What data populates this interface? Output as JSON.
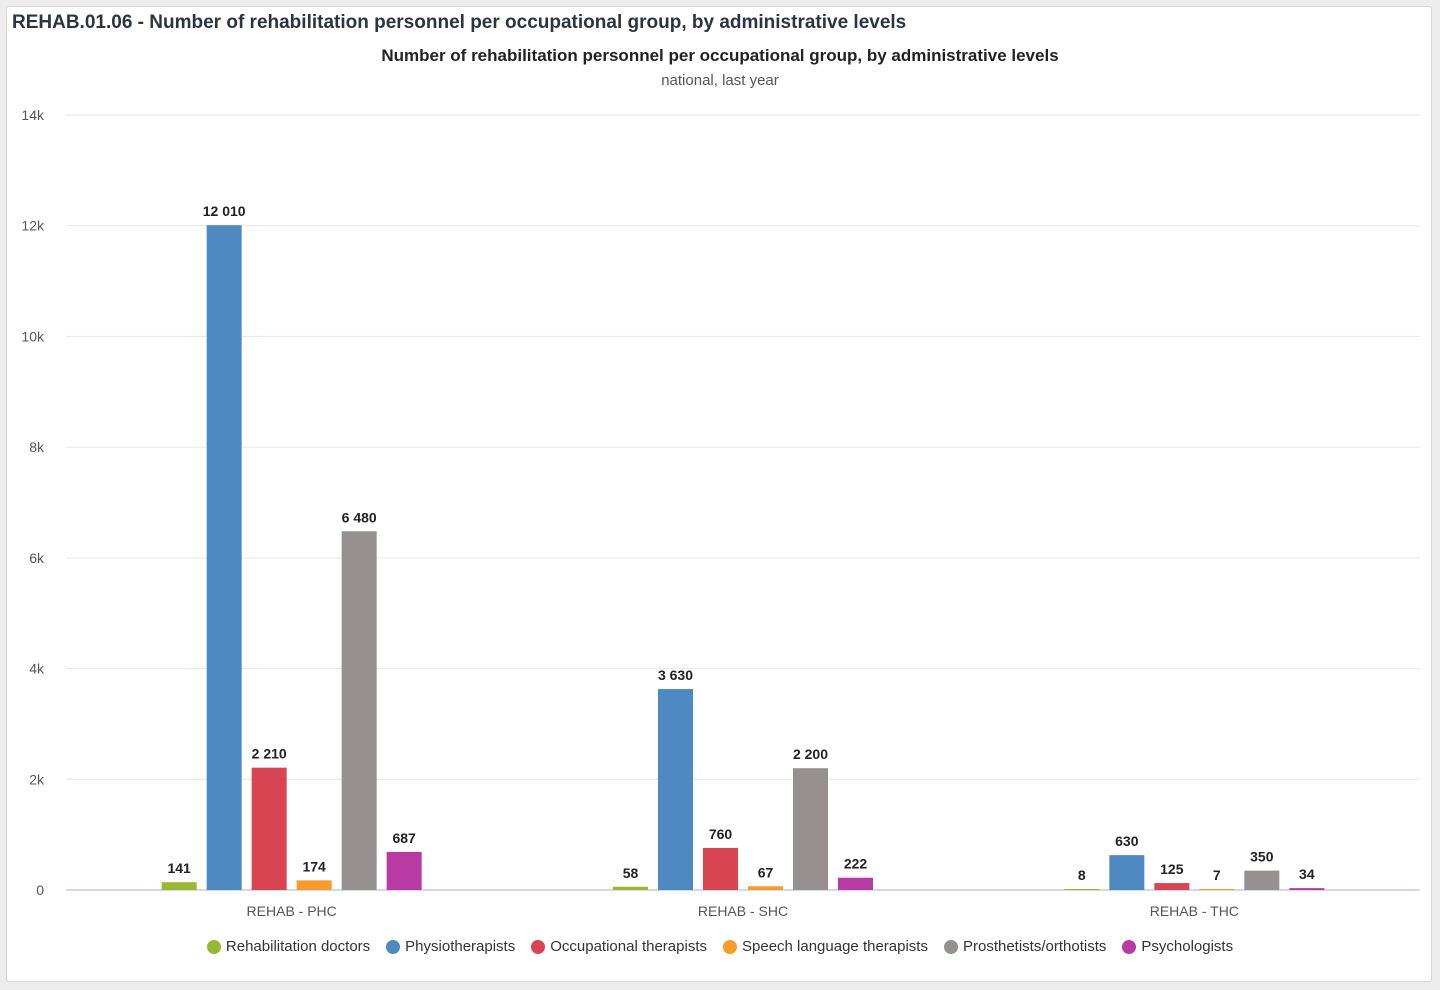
{
  "card": {
    "title": "REHAB.01.06 - Number of rehabilitation personnel per occupational group, by administrative levels"
  },
  "chart_data": {
    "type": "bar",
    "title": "Number of rehabilitation personnel per occupational group, by administrative levels",
    "subtitle": "national, last year",
    "xlabel": "",
    "ylabel": "",
    "ylim": [
      0,
      14000
    ],
    "yticks": [
      0,
      2000,
      4000,
      6000,
      8000,
      10000,
      12000,
      14000
    ],
    "ytick_labels": [
      "0",
      "2k",
      "4k",
      "6k",
      "8k",
      "10k",
      "12k",
      "14k"
    ],
    "grid": true,
    "legend_position": "bottom",
    "categories": [
      "REHAB - PHC",
      "REHAB - SHC",
      "REHAB - THC"
    ],
    "series": [
      {
        "name": "Rehabilitation doctors",
        "color": "#9ab731",
        "values": [
          141,
          58,
          8
        ],
        "labels": [
          "141",
          "58",
          "8"
        ]
      },
      {
        "name": "Physiotherapists",
        "color": "#4e89c2",
        "values": [
          12010,
          3630,
          630
        ],
        "labels": [
          "12 010",
          "3 630",
          "630"
        ]
      },
      {
        "name": "Occupational therapists",
        "color": "#d94452",
        "values": [
          2210,
          760,
          125
        ],
        "labels": [
          "2 210",
          "760",
          "125"
        ]
      },
      {
        "name": "Speech language therapists",
        "color": "#f59c2a",
        "values": [
          174,
          67,
          7
        ],
        "labels": [
          "174",
          "67",
          "7"
        ]
      },
      {
        "name": "Prosthetists/orthotists",
        "color": "#969090",
        "values": [
          6480,
          2200,
          350
        ],
        "labels": [
          "6 480",
          "2 200",
          "350"
        ]
      },
      {
        "name": "Psychologists",
        "color": "#b83aa3",
        "values": [
          687,
          222,
          34
        ],
        "labels": [
          "687",
          "222",
          "34"
        ]
      }
    ]
  }
}
